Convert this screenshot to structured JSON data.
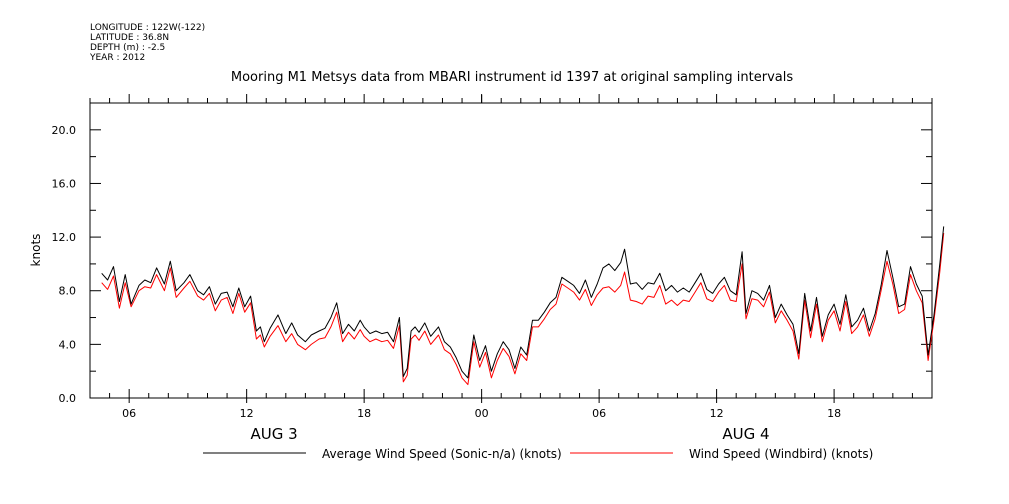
{
  "header": {
    "lines": [
      "LONGITUDE : 122W(-122)",
      "LATITUDE : 36.8N",
      "DEPTH (m) : -2.5",
      "YEAR : 2012"
    ]
  },
  "colors": {
    "axis": "#000000",
    "series1": "#000000",
    "series2": "#ff0000"
  },
  "chart_data": {
    "type": "line",
    "title": "Mooring M1 Metsys data from MBARI instrument id 1397 at original sampling intervals",
    "ylabel": "knots",
    "xlabel": "",
    "x_unit": "hours since AUG 3 00:00",
    "xlim": [
      4,
      47
    ],
    "ylim": [
      0,
      22
    ],
    "yticks": [
      0,
      4,
      8,
      12,
      16,
      20
    ],
    "ytick_labels": [
      "0.0",
      "4.0",
      "8.0",
      "12.0",
      "16.0",
      "20.0"
    ],
    "xticks": [
      6,
      12,
      18,
      24,
      30,
      36,
      42
    ],
    "xtick_labels": [
      "06",
      "12",
      "18",
      "00",
      "06",
      "12",
      "18"
    ],
    "date_labels": [
      {
        "x": 13.4,
        "text": "AUG  3"
      },
      {
        "x": 37.5,
        "text": "AUG  4"
      }
    ],
    "grid": false,
    "legend": "bottom",
    "series": [
      {
        "name": "Average Wind Speed (Sonic-n/a) (knots)",
        "color": "#000000",
        "points": [
          [
            4.6,
            9.3
          ],
          [
            4.9,
            8.8
          ],
          [
            5.2,
            9.8
          ],
          [
            5.5,
            7.2
          ],
          [
            5.8,
            9.2
          ],
          [
            6.1,
            7.0
          ],
          [
            6.5,
            8.4
          ],
          [
            6.8,
            8.8
          ],
          [
            7.1,
            8.6
          ],
          [
            7.4,
            9.7
          ],
          [
            7.8,
            8.5
          ],
          [
            8.1,
            10.2
          ],
          [
            8.4,
            8.0
          ],
          [
            8.8,
            8.6
          ],
          [
            9.1,
            9.2
          ],
          [
            9.5,
            8.0
          ],
          [
            9.8,
            7.7
          ],
          [
            10.1,
            8.3
          ],
          [
            10.4,
            7.0
          ],
          [
            10.7,
            7.8
          ],
          [
            11.0,
            7.9
          ],
          [
            11.3,
            6.8
          ],
          [
            11.6,
            8.2
          ],
          [
            11.9,
            6.8
          ],
          [
            12.2,
            7.6
          ],
          [
            12.5,
            5.0
          ],
          [
            12.7,
            5.3
          ],
          [
            12.9,
            4.2
          ],
          [
            13.2,
            5.2
          ],
          [
            13.6,
            6.2
          ],
          [
            14.0,
            4.8
          ],
          [
            14.3,
            5.6
          ],
          [
            14.6,
            4.7
          ],
          [
            15.0,
            4.2
          ],
          [
            15.3,
            4.7
          ],
          [
            15.7,
            5.0
          ],
          [
            16.0,
            5.2
          ],
          [
            16.3,
            6.0
          ],
          [
            16.6,
            7.1
          ],
          [
            16.9,
            4.8
          ],
          [
            17.2,
            5.5
          ],
          [
            17.5,
            5.0
          ],
          [
            17.8,
            5.8
          ],
          [
            18.0,
            5.3
          ],
          [
            18.3,
            4.8
          ],
          [
            18.6,
            5.0
          ],
          [
            18.9,
            4.8
          ],
          [
            19.2,
            4.9
          ],
          [
            19.5,
            4.2
          ],
          [
            19.8,
            6.0
          ],
          [
            20.0,
            1.6
          ],
          [
            20.2,
            2.2
          ],
          [
            20.4,
            5.0
          ],
          [
            20.6,
            5.3
          ],
          [
            20.8,
            4.9
          ],
          [
            21.1,
            5.6
          ],
          [
            21.4,
            4.6
          ],
          [
            21.8,
            5.3
          ],
          [
            22.1,
            4.2
          ],
          [
            22.4,
            3.8
          ],
          [
            22.7,
            3.0
          ],
          [
            23.0,
            2.0
          ],
          [
            23.3,
            1.5
          ],
          [
            23.6,
            4.7
          ],
          [
            23.9,
            2.8
          ],
          [
            24.2,
            3.9
          ],
          [
            24.5,
            2.0
          ],
          [
            24.8,
            3.3
          ],
          [
            25.1,
            4.2
          ],
          [
            25.4,
            3.6
          ],
          [
            25.7,
            2.2
          ],
          [
            26.0,
            3.8
          ],
          [
            26.3,
            3.2
          ],
          [
            26.6,
            5.8
          ],
          [
            26.9,
            5.8
          ],
          [
            27.2,
            6.4
          ],
          [
            27.5,
            7.1
          ],
          [
            27.8,
            7.5
          ],
          [
            28.1,
            9.0
          ],
          [
            28.4,
            8.7
          ],
          [
            28.7,
            8.4
          ],
          [
            29.0,
            7.8
          ],
          [
            29.3,
            8.8
          ],
          [
            29.6,
            7.5
          ],
          [
            29.9,
            8.5
          ],
          [
            30.2,
            9.7
          ],
          [
            30.5,
            10.0
          ],
          [
            30.8,
            9.5
          ],
          [
            31.1,
            10.1
          ],
          [
            31.3,
            11.1
          ],
          [
            31.6,
            8.5
          ],
          [
            31.9,
            8.6
          ],
          [
            32.2,
            8.1
          ],
          [
            32.5,
            8.6
          ],
          [
            32.8,
            8.5
          ],
          [
            33.1,
            9.3
          ],
          [
            33.4,
            8.0
          ],
          [
            33.7,
            8.4
          ],
          [
            34.0,
            7.9
          ],
          [
            34.3,
            8.2
          ],
          [
            34.6,
            7.9
          ],
          [
            34.9,
            8.6
          ],
          [
            35.2,
            9.3
          ],
          [
            35.5,
            8.1
          ],
          [
            35.8,
            7.8
          ],
          [
            36.1,
            8.5
          ],
          [
            36.4,
            9.0
          ],
          [
            36.7,
            8.0
          ],
          [
            37.0,
            7.7
          ],
          [
            37.3,
            10.9
          ],
          [
            37.5,
            6.3
          ],
          [
            37.8,
            8.0
          ],
          [
            38.1,
            7.8
          ],
          [
            38.4,
            7.3
          ],
          [
            38.7,
            8.4
          ],
          [
            39.0,
            6.0
          ],
          [
            39.3,
            7.0
          ],
          [
            39.6,
            6.2
          ],
          [
            39.9,
            5.5
          ],
          [
            40.2,
            3.3
          ],
          [
            40.5,
            7.8
          ],
          [
            40.8,
            5.0
          ],
          [
            41.1,
            7.5
          ],
          [
            41.4,
            4.6
          ],
          [
            41.7,
            6.2
          ],
          [
            42.0,
            7.0
          ],
          [
            42.3,
            5.5
          ],
          [
            42.6,
            7.7
          ],
          [
            42.9,
            5.3
          ],
          [
            43.2,
            5.8
          ],
          [
            43.5,
            6.7
          ],
          [
            43.8,
            5.0
          ],
          [
            44.1,
            6.3
          ],
          [
            44.4,
            8.4
          ],
          [
            44.7,
            11.0
          ],
          [
            45.0,
            9.0
          ],
          [
            45.3,
            6.8
          ],
          [
            45.6,
            7.0
          ],
          [
            45.9,
            9.8
          ],
          [
            46.2,
            8.5
          ],
          [
            46.5,
            7.6
          ],
          [
            46.8,
            3.2
          ],
          [
            47.1,
            6.2
          ],
          [
            47.4,
            10.0
          ],
          [
            47.6,
            12.8
          ]
        ]
      },
      {
        "name": "Wind Speed (Windbird) (knots)",
        "color": "#ff0000",
        "points": [
          [
            4.6,
            8.6
          ],
          [
            4.9,
            8.1
          ],
          [
            5.2,
            9.1
          ],
          [
            5.5,
            6.7
          ],
          [
            5.8,
            8.6
          ],
          [
            6.1,
            6.8
          ],
          [
            6.5,
            8.0
          ],
          [
            6.8,
            8.3
          ],
          [
            7.1,
            8.2
          ],
          [
            7.4,
            9.2
          ],
          [
            7.8,
            8.0
          ],
          [
            8.1,
            9.7
          ],
          [
            8.4,
            7.5
          ],
          [
            8.8,
            8.2
          ],
          [
            9.1,
            8.7
          ],
          [
            9.5,
            7.6
          ],
          [
            9.8,
            7.3
          ],
          [
            10.1,
            7.8
          ],
          [
            10.4,
            6.5
          ],
          [
            10.7,
            7.3
          ],
          [
            11.0,
            7.5
          ],
          [
            11.3,
            6.3
          ],
          [
            11.6,
            7.8
          ],
          [
            11.9,
            6.4
          ],
          [
            12.2,
            7.1
          ],
          [
            12.5,
            4.4
          ],
          [
            12.7,
            4.7
          ],
          [
            12.9,
            3.8
          ],
          [
            13.2,
            4.6
          ],
          [
            13.6,
            5.4
          ],
          [
            14.0,
            4.2
          ],
          [
            14.3,
            4.8
          ],
          [
            14.6,
            4.0
          ],
          [
            15.0,
            3.6
          ],
          [
            15.3,
            4.0
          ],
          [
            15.7,
            4.4
          ],
          [
            16.0,
            4.5
          ],
          [
            16.3,
            5.3
          ],
          [
            16.6,
            6.4
          ],
          [
            16.9,
            4.2
          ],
          [
            17.2,
            4.9
          ],
          [
            17.5,
            4.4
          ],
          [
            17.8,
            5.1
          ],
          [
            18.0,
            4.6
          ],
          [
            18.3,
            4.2
          ],
          [
            18.6,
            4.4
          ],
          [
            18.9,
            4.2
          ],
          [
            19.2,
            4.3
          ],
          [
            19.5,
            3.7
          ],
          [
            19.8,
            5.4
          ],
          [
            20.0,
            1.2
          ],
          [
            20.2,
            1.7
          ],
          [
            20.4,
            4.4
          ],
          [
            20.6,
            4.7
          ],
          [
            20.8,
            4.3
          ],
          [
            21.1,
            5.0
          ],
          [
            21.4,
            4.0
          ],
          [
            21.8,
            4.7
          ],
          [
            22.1,
            3.6
          ],
          [
            22.4,
            3.3
          ],
          [
            22.7,
            2.5
          ],
          [
            23.0,
            1.5
          ],
          [
            23.3,
            1.0
          ],
          [
            23.6,
            4.2
          ],
          [
            23.9,
            2.3
          ],
          [
            24.2,
            3.4
          ],
          [
            24.5,
            1.5
          ],
          [
            24.8,
            2.8
          ],
          [
            25.1,
            3.7
          ],
          [
            25.4,
            3.1
          ],
          [
            25.7,
            1.8
          ],
          [
            26.0,
            3.3
          ],
          [
            26.3,
            2.8
          ],
          [
            26.6,
            5.3
          ],
          [
            26.9,
            5.3
          ],
          [
            27.2,
            5.9
          ],
          [
            27.5,
            6.6
          ],
          [
            27.8,
            7.0
          ],
          [
            28.1,
            8.5
          ],
          [
            28.4,
            8.2
          ],
          [
            28.7,
            7.9
          ],
          [
            29.0,
            7.3
          ],
          [
            29.3,
            8.1
          ],
          [
            29.6,
            6.9
          ],
          [
            29.9,
            7.7
          ],
          [
            30.2,
            8.2
          ],
          [
            30.5,
            8.3
          ],
          [
            30.8,
            7.9
          ],
          [
            31.1,
            8.4
          ],
          [
            31.3,
            9.4
          ],
          [
            31.6,
            7.3
          ],
          [
            31.9,
            7.2
          ],
          [
            32.2,
            7.0
          ],
          [
            32.5,
            7.6
          ],
          [
            32.8,
            7.5
          ],
          [
            33.1,
            8.4
          ],
          [
            33.4,
            7.0
          ],
          [
            33.7,
            7.3
          ],
          [
            34.0,
            6.9
          ],
          [
            34.3,
            7.3
          ],
          [
            34.6,
            7.2
          ],
          [
            34.9,
            7.9
          ],
          [
            35.2,
            8.6
          ],
          [
            35.5,
            7.4
          ],
          [
            35.8,
            7.2
          ],
          [
            36.1,
            7.9
          ],
          [
            36.4,
            8.4
          ],
          [
            36.7,
            7.3
          ],
          [
            37.0,
            7.2
          ],
          [
            37.3,
            10.0
          ],
          [
            37.5,
            5.9
          ],
          [
            37.8,
            7.4
          ],
          [
            38.1,
            7.3
          ],
          [
            38.4,
            6.8
          ],
          [
            38.7,
            7.9
          ],
          [
            39.0,
            5.6
          ],
          [
            39.3,
            6.5
          ],
          [
            39.6,
            5.8
          ],
          [
            39.9,
            5.0
          ],
          [
            40.2,
            2.9
          ],
          [
            40.5,
            7.3
          ],
          [
            40.8,
            4.5
          ],
          [
            41.1,
            7.0
          ],
          [
            41.4,
            4.2
          ],
          [
            41.7,
            5.8
          ],
          [
            42.0,
            6.5
          ],
          [
            42.3,
            5.0
          ],
          [
            42.6,
            7.2
          ],
          [
            42.9,
            4.8
          ],
          [
            43.2,
            5.3
          ],
          [
            43.5,
            6.2
          ],
          [
            43.8,
            4.6
          ],
          [
            44.1,
            5.9
          ],
          [
            44.4,
            8.0
          ],
          [
            44.7,
            10.2
          ],
          [
            45.0,
            8.5
          ],
          [
            45.3,
            6.3
          ],
          [
            45.6,
            6.6
          ],
          [
            45.9,
            9.2
          ],
          [
            46.2,
            8.0
          ],
          [
            46.5,
            7.1
          ],
          [
            46.8,
            2.8
          ],
          [
            47.1,
            5.8
          ],
          [
            47.4,
            9.4
          ],
          [
            47.6,
            12.3
          ]
        ]
      }
    ]
  }
}
